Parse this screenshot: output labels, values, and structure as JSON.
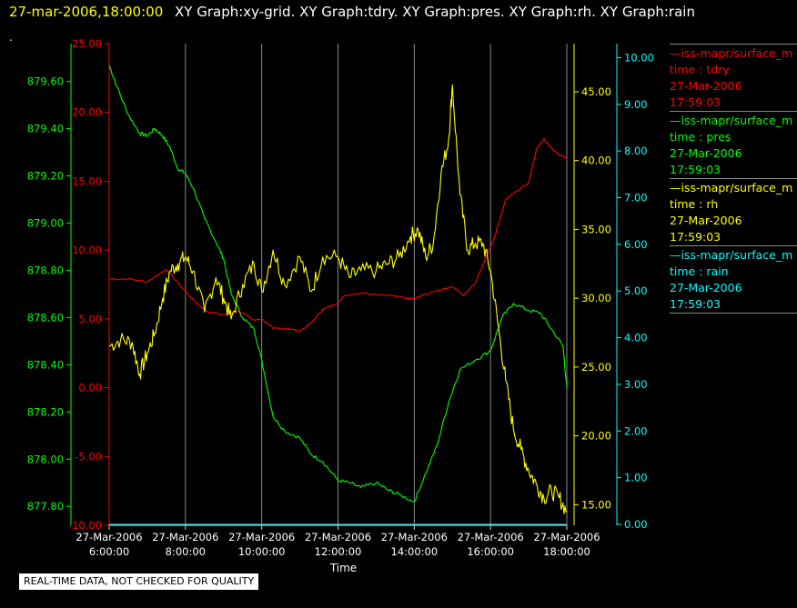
{
  "header": {
    "timestamp": "27-mar-2006,18:00:00",
    "title": "XY Graph:xy-grid.  XY Graph:tdry.  XY Graph:pres.  XY Graph:rh.  XY Graph:rain"
  },
  "corner_mark": ".",
  "notice": "REAL-TIME DATA, NOT CHECKED FOR QUALITY",
  "legend": [
    {
      "source": "—iss-mapr/surface_m",
      "variable": "time : tdry",
      "date": "27-Mar-2006",
      "time": "17:59:03",
      "color": "#ff0000"
    },
    {
      "source": "—iss-mapr/surface_m",
      "variable": "time : pres",
      "date": "27-Mar-2006",
      "time": "17:59:03",
      "color": "#00ff00"
    },
    {
      "source": "—iss-mapr/surface_m",
      "variable": "time : rh",
      "date": "27-Mar-2006",
      "time": "17:59:03",
      "color": "#ffff00"
    },
    {
      "source": "—iss-mapr/surface_m",
      "variable": "time : rain",
      "date": "27-Mar-2006",
      "time": "17:59:03",
      "color": "#00ffff"
    }
  ],
  "chart_data": {
    "type": "line",
    "xlabel": "Time",
    "xlim": [
      6,
      18
    ],
    "x_ticks": [
      {
        "value": 6,
        "date": "27-Mar-2006",
        "time": "6:00:00"
      },
      {
        "value": 8,
        "date": "27-Mar-2006",
        "time": "8:00:00"
      },
      {
        "value": 10,
        "date": "27-Mar-2006",
        "time": "10:00:00"
      },
      {
        "value": 12,
        "date": "27-Mar-2006",
        "time": "12:00:00"
      },
      {
        "value": 14,
        "date": "27-Mar-2006",
        "time": "14:00:00"
      },
      {
        "value": 16,
        "date": "27-Mar-2006",
        "time": "16:00:00"
      },
      {
        "value": 18,
        "date": "27-Mar-2006",
        "time": "18:00:00"
      }
    ],
    "grid": "vertical lines at hour ticks",
    "axes": [
      {
        "id": "pres",
        "color": "#00ff00",
        "side": "left-outer",
        "ylim": [
          877.72,
          879.76
        ],
        "ticks": [
          "877.80",
          "878.00",
          "878.20",
          "878.40",
          "878.60",
          "878.80",
          "879.00",
          "879.20",
          "879.40",
          "879.60"
        ]
      },
      {
        "id": "tdry",
        "color": "#ff0000",
        "side": "left-inner",
        "ylim": [
          -10,
          25
        ],
        "ticks": [
          "-10.00",
          "-5.00",
          "0.00",
          "5.00",
          "10.00",
          "15.00",
          "20.00",
          "25.00"
        ]
      },
      {
        "id": "rh",
        "color": "#ffff00",
        "side": "right-inner",
        "ylim": [
          13.5,
          48.5
        ],
        "ticks": [
          "15.00",
          "20.00",
          "25.00",
          "30.00",
          "35.00",
          "40.00",
          "45.00"
        ]
      },
      {
        "id": "rain",
        "color": "#00ffff",
        "side": "right-outer",
        "ylim": [
          -0.02,
          10.3
        ],
        "ticks": [
          "0.00",
          "1.00",
          "2.00",
          "3.00",
          "4.00",
          "5.00",
          "6.00",
          "7.00",
          "8.00",
          "9.00",
          "10.00"
        ]
      }
    ],
    "series": [
      {
        "name": "tdry",
        "axis": "tdry",
        "color": "#ff0000",
        "x": [
          6.0,
          6.5,
          7.0,
          7.5,
          7.9,
          8.3,
          8.6,
          9.0,
          9.4,
          9.8,
          10.0,
          10.3,
          10.7,
          11.0,
          11.3,
          11.6,
          11.9,
          12.2,
          12.6,
          13.0,
          13.4,
          13.8,
          14.0,
          14.3,
          14.7,
          15.0,
          15.3,
          15.6,
          15.9,
          16.1,
          16.4,
          16.7,
          17.0,
          17.2,
          17.4,
          17.6,
          17.8,
          18.0
        ],
        "y": [
          7.9,
          7.9,
          7.7,
          8.6,
          7.3,
          6.1,
          5.5,
          5.3,
          5.6,
          4.9,
          5.0,
          4.3,
          4.3,
          4.1,
          4.7,
          5.7,
          6.0,
          6.7,
          6.9,
          6.8,
          6.7,
          6.5,
          6.5,
          6.8,
          7.1,
          7.3,
          6.7,
          7.6,
          9.6,
          10.9,
          13.7,
          14.3,
          14.9,
          17.3,
          18.1,
          17.4,
          16.9,
          16.7
        ]
      },
      {
        "name": "pres",
        "axis": "pres",
        "color": "#00ff00",
        "x": [
          6.0,
          6.2,
          6.5,
          6.8,
          7.0,
          7.2,
          7.4,
          7.6,
          7.8,
          8.0,
          8.2,
          8.5,
          8.8,
          9.0,
          9.2,
          9.5,
          9.8,
          10.0,
          10.3,
          10.6,
          11.0,
          11.3,
          11.6,
          12.0,
          12.3,
          12.6,
          13.0,
          13.3,
          13.6,
          14.0,
          14.3,
          14.6,
          14.9,
          15.2,
          15.6,
          16.0,
          16.3,
          16.6,
          17.0,
          17.3,
          17.6,
          17.9,
          18.0
        ],
        "y": [
          879.67,
          879.58,
          879.46,
          879.38,
          879.37,
          879.4,
          879.37,
          879.32,
          879.23,
          879.21,
          879.15,
          879.02,
          878.92,
          878.85,
          878.7,
          878.6,
          878.55,
          878.42,
          878.18,
          878.12,
          878.09,
          878.02,
          877.99,
          877.91,
          877.9,
          877.88,
          877.9,
          877.87,
          877.85,
          877.82,
          877.94,
          878.06,
          878.24,
          878.38,
          878.42,
          878.46,
          878.6,
          878.66,
          878.63,
          878.62,
          878.55,
          878.48,
          878.3
        ]
      },
      {
        "name": "rh",
        "axis": "rh",
        "color": "#ffff00",
        "x": [
          6.0,
          6.3,
          6.6,
          6.8,
          7.0,
          7.2,
          7.4,
          7.6,
          7.8,
          8.0,
          8.2,
          8.5,
          8.8,
          9.0,
          9.2,
          9.5,
          9.8,
          10.0,
          10.3,
          10.6,
          11.0,
          11.3,
          11.6,
          12.0,
          12.3,
          12.6,
          13.0,
          13.3,
          13.6,
          13.9,
          14.1,
          14.3,
          14.5,
          14.7,
          14.9,
          15.0,
          15.2,
          15.4,
          15.6,
          15.8,
          16.0,
          16.2,
          16.4,
          16.6,
          16.8,
          17.0,
          17.2,
          17.4,
          17.6,
          17.8,
          18.0
        ],
        "y": [
          26.5,
          27.0,
          26.8,
          24.5,
          26.0,
          27.5,
          30.0,
          32.0,
          32.5,
          33.0,
          32.0,
          29.0,
          31.5,
          30.0,
          28.5,
          31.0,
          32.5,
          30.5,
          33.5,
          31.0,
          33.0,
          30.5,
          33.0,
          33.0,
          31.5,
          32.0,
          32.0,
          32.5,
          33.0,
          34.5,
          35.0,
          33.0,
          34.0,
          39.0,
          41.5,
          45.5,
          37.5,
          33.5,
          34.0,
          34.0,
          32.0,
          28.0,
          24.0,
          20.5,
          19.0,
          17.5,
          16.5,
          15.5,
          16.0,
          15.5,
          14.5
        ]
      },
      {
        "name": "rain",
        "axis": "rain",
        "color": "#00ffff",
        "x": [
          6.0,
          18.0
        ],
        "y": [
          0.0,
          0.0
        ]
      }
    ]
  }
}
